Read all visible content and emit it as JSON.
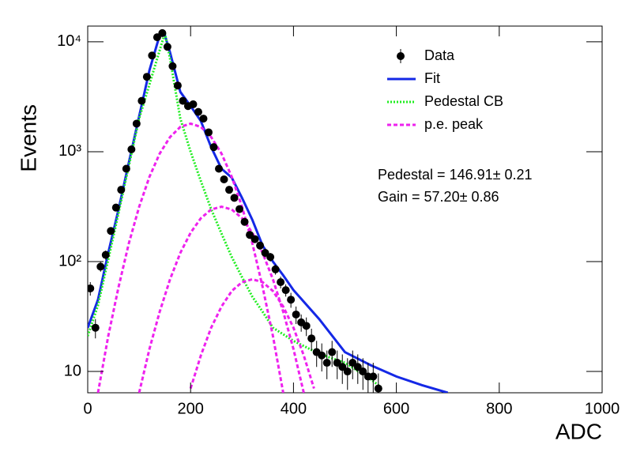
{
  "chart_data": {
    "type": "scatter",
    "xlabel": "ADC",
    "ylabel": "Events",
    "xlim": [
      0,
      1000
    ],
    "ylim": [
      6.4,
      13900
    ],
    "xticks": [
      0,
      200,
      400,
      600,
      800,
      1000
    ],
    "yticks": [
      10,
      {
        "value": 100,
        "label": "10²"
      },
      {
        "value": 1000,
        "label": "10³"
      },
      {
        "value": 10000,
        "label": "10⁴"
      }
    ],
    "log_y": true,
    "legend": "top-right",
    "annotations": [
      "Pedestal = 146.91± 0.21",
      "Gain = 57.20± 0.86"
    ],
    "series": [
      {
        "name": "Data",
        "style": "points",
        "color": "#000000",
        "x": [
          5,
          15,
          25,
          35,
          45,
          55,
          65,
          75,
          85,
          95,
          105,
          115,
          125,
          135,
          145,
          155,
          165,
          175,
          185,
          195,
          205,
          215,
          225,
          235,
          245,
          255,
          265,
          275,
          285,
          295,
          305,
          315,
          325,
          335,
          345,
          355,
          365,
          375,
          385,
          395,
          405,
          415,
          425,
          435,
          445,
          455,
          465,
          475,
          485,
          495,
          505,
          515,
          525,
          535,
          545,
          555,
          565
        ],
        "values": [
          57,
          25,
          90,
          115,
          190,
          310,
          450,
          700,
          1050,
          1800,
          2900,
          4800,
          7500,
          11000,
          12000,
          9000,
          6000,
          4000,
          2900,
          2600,
          2700,
          2300,
          2000,
          1500,
          1100,
          700,
          560,
          450,
          380,
          300,
          230,
          175,
          160,
          140,
          120,
          110,
          85,
          65,
          55,
          45,
          33,
          28,
          26,
          20,
          15,
          14,
          12,
          15,
          12,
          11,
          10,
          12,
          11,
          10,
          9,
          9,
          7
        ],
        "errors": [
          8,
          5,
          9,
          11,
          14,
          18,
          21,
          26,
          32,
          42,
          54,
          69,
          87,
          105,
          110,
          95,
          77,
          63,
          54,
          51,
          52,
          48,
          45,
          39,
          33,
          26,
          24,
          21,
          19,
          17,
          15,
          13,
          13,
          12,
          11,
          10,
          9,
          8,
          7,
          7,
          6,
          5,
          5,
          4.5,
          4,
          4,
          3.5,
          4,
          3.5,
          3.3,
          3.2,
          3.5,
          3.3,
          3.2,
          3,
          3,
          2.6
        ]
      },
      {
        "name": "Fit",
        "style": "solid",
        "color": "#1428e6",
        "x": [
          0,
          20,
          40,
          60,
          80,
          100,
          120,
          140,
          150,
          160,
          180,
          200,
          220,
          240,
          260,
          280,
          300,
          320,
          340,
          360,
          380,
          400,
          450,
          500,
          550,
          600,
          650,
          700
        ],
        "values": [
          25,
          45,
          120,
          300,
          800,
          2100,
          5500,
          11500,
          11500,
          8000,
          3500,
          2600,
          1900,
          1100,
          700,
          580,
          380,
          240,
          140,
          100,
          75,
          55,
          30,
          15,
          11.4,
          9,
          7.5,
          6.4
        ]
      },
      {
        "name": "Pedestal CB",
        "style": "dotted",
        "color": "#22ee22",
        "x": [
          0,
          20,
          50,
          100,
          150,
          160,
          180,
          200,
          220,
          240,
          260,
          280,
          300,
          320,
          340,
          360,
          400,
          450,
          500,
          550,
          570
        ],
        "values": [
          21,
          40,
          170,
          2000,
          12000,
          7000,
          2000,
          1000,
          540,
          300,
          180,
          110,
          72,
          48,
          35,
          25,
          19,
          14.5,
          12,
          8.5,
          7.2
        ]
      },
      {
        "name": "p.e. peak",
        "style": "dashed",
        "color": "#ee22ee",
        "x": [
          20,
          40,
          60,
          80,
          100,
          120,
          140,
          160,
          180,
          200,
          220,
          240,
          260,
          280,
          300,
          320,
          340,
          360,
          380
        ],
        "values": [
          6.4,
          21,
          59,
          147,
          315,
          590,
          962,
          1360,
          1680,
          1800,
          1680,
          1360,
          962,
          590,
          315,
          147,
          59,
          21,
          6.4
        ]
      },
      {
        "style": "dashed",
        "color": "#ee22ee",
        "x": [
          100,
          120,
          140,
          160,
          180,
          200,
          220,
          240,
          260,
          280,
          300,
          320,
          340,
          360,
          380,
          400,
          420
        ],
        "values": [
          6.4,
          16,
          35,
          69,
          120,
          183,
          248,
          298,
          316,
          298,
          248,
          183,
          120,
          69,
          35,
          16,
          6.4
        ]
      },
      {
        "style": "dashed",
        "color": "#ee22ee",
        "x": [
          200,
          220,
          240,
          260,
          280,
          300,
          320,
          340,
          360,
          380,
          400,
          420,
          440
        ],
        "values": [
          7,
          14,
          25,
          39,
          54,
          65,
          69,
          65,
          54,
          39,
          25,
          14,
          7
        ]
      }
    ]
  }
}
